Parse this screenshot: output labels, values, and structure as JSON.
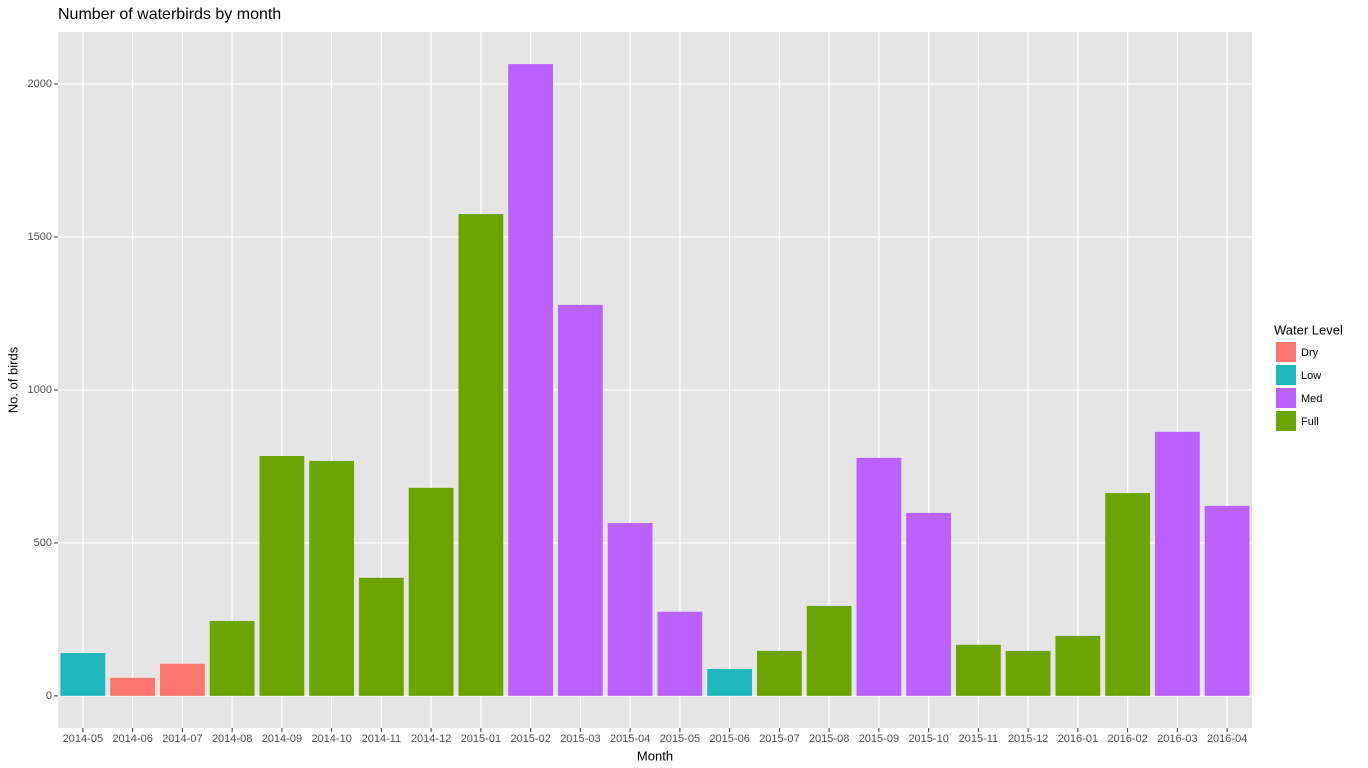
{
  "chart_data": {
    "type": "bar",
    "title": "Number of waterbirds by month",
    "x_label": "Month",
    "y_label": "No. of birds",
    "legend_title": "Water Level",
    "legend_position": "right",
    "grid": true,
    "categories": [
      "2014-05",
      "2014-06",
      "2014-07",
      "2014-08",
      "2014-09",
      "2014-10",
      "2014-11",
      "2014-12",
      "2015-01",
      "2015-02",
      "2015-03",
      "2015-04",
      "2015-05",
      "2015-06",
      "2015-07",
      "2015-08",
      "2015-09",
      "2015-10",
      "2015-11",
      "2015-12",
      "2016-01",
      "2016-02",
      "2016-03",
      "2016-04"
    ],
    "series": [
      {
        "name": "Dry",
        "color": "#F8766D",
        "values": [
          null,
          59,
          105,
          null,
          null,
          null,
          null,
          null,
          null,
          null,
          null,
          null,
          null,
          null,
          null,
          null,
          null,
          null,
          null,
          null,
          null,
          null,
          null,
          null
        ]
      },
      {
        "name": "Low",
        "color": "#1DB7BD",
        "values": [
          140,
          null,
          null,
          null,
          null,
          null,
          null,
          null,
          null,
          null,
          null,
          null,
          null,
          88,
          null,
          null,
          null,
          null,
          null,
          null,
          null,
          null,
          null,
          null
        ]
      },
      {
        "name": "Med",
        "color": "#BB61FF",
        "values": [
          null,
          null,
          null,
          null,
          null,
          null,
          null,
          null,
          null,
          2065,
          1278,
          565,
          275,
          null,
          null,
          null,
          778,
          598,
          null,
          null,
          null,
          null,
          863,
          621
        ]
      },
      {
        "name": "Full",
        "color": "#6BA403",
        "values": [
          null,
          null,
          null,
          245,
          784,
          768,
          386,
          680,
          1575,
          null,
          null,
          null,
          null,
          null,
          147,
          294,
          null,
          null,
          167,
          147,
          196,
          663,
          null,
          null
        ]
      }
    ],
    "ylim": [
      -105,
      2170
    ],
    "yticks": [
      0,
      500,
      1000,
      1500,
      2000
    ]
  }
}
